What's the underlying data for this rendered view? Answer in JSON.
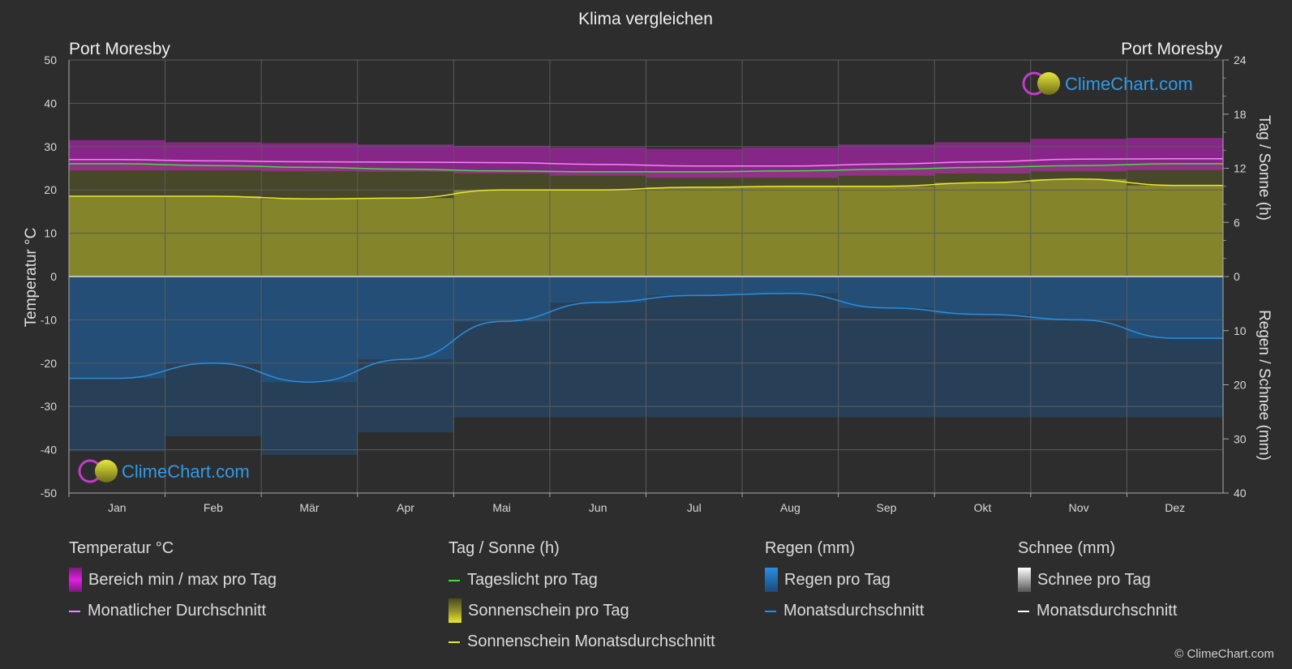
{
  "header": {
    "title": "Klima vergleichen"
  },
  "location_left": "Port Moresby",
  "location_right": "Port Moresby",
  "axis": {
    "left_label": "Temperatur °C",
    "right_top_label": "Tag / Sonne (h)",
    "right_bottom_label": "Regen / Schnee (mm)"
  },
  "watermark": "ClimeChart.com",
  "copyright": "© ClimeChart.com",
  "colors": {
    "background": "#2d2d2d",
    "temp_range": "#d020d0",
    "temp_avg": "#ff80ff",
    "daylight": "#44dd44",
    "sunshine_fill": "#8f8f2a",
    "sunshine_avg": "#e8e830",
    "rain_fill": "#1e6ab0",
    "rain_avg": "#2a8ee0",
    "snow_avg": "#ffffff"
  },
  "legend": {
    "temperature": {
      "header": "Temperatur °C",
      "items": [
        {
          "label": "Bereich min / max pro Tag",
          "icon": "magenta-gradient-box"
        },
        {
          "label": "Monatlicher Durchschnitt",
          "icon": "pink-line"
        }
      ]
    },
    "sun": {
      "header": "Tag / Sonne (h)",
      "items": [
        {
          "label": "Tageslicht pro Tag",
          "icon": "green-line"
        },
        {
          "label": "Sonnenschein pro Tag",
          "icon": "yellow-gradient-box"
        },
        {
          "label": "Sonnenschein Monatsdurchschnitt",
          "icon": "yellow-line"
        }
      ]
    },
    "rain": {
      "header": "Regen (mm)",
      "items": [
        {
          "label": "Regen pro Tag",
          "icon": "blue-gradient-box"
        },
        {
          "label": "Monatsdurchschnitt",
          "icon": "blue-line"
        }
      ]
    },
    "snow": {
      "header": "Schnee (mm)",
      "items": [
        {
          "label": "Schnee pro Tag",
          "icon": "white-gradient-box"
        },
        {
          "label": "Monatsdurchschnitt",
          "icon": "white-line"
        }
      ]
    }
  },
  "chart_data": {
    "type": "area",
    "categories": [
      "Jan",
      "Feb",
      "Mär",
      "Apr",
      "Mai",
      "Jun",
      "Jul",
      "Aug",
      "Sep",
      "Okt",
      "Nov",
      "Dez"
    ],
    "y_left": {
      "label": "Temperatur °C",
      "range": [
        -50,
        50
      ],
      "ticks": [
        50,
        40,
        30,
        20,
        10,
        0,
        -10,
        -20,
        -30,
        -40,
        -50
      ]
    },
    "y_right_top": {
      "label": "Tag / Sonne (h)",
      "range": [
        0,
        24
      ],
      "ticks": [
        24,
        18,
        12,
        6,
        0
      ]
    },
    "y_right_bottom": {
      "label": "Regen / Schnee (mm)",
      "range": [
        0,
        40
      ],
      "ticks": [
        0,
        10,
        20,
        30,
        40
      ]
    },
    "grid": true,
    "series": [
      {
        "name": "Bereich min / max pro Tag",
        "axis": "temperature",
        "min": [
          24.5,
          24.5,
          24.3,
          24.2,
          23.8,
          23.3,
          22.8,
          22.8,
          23.3,
          23.8,
          24.3,
          24.6
        ],
        "max": [
          31.5,
          31.0,
          30.8,
          30.5,
          30.2,
          29.8,
          29.5,
          29.8,
          30.5,
          31.0,
          31.8,
          32.0
        ]
      },
      {
        "name": "Monatlicher Durchschnitt",
        "axis": "temperature",
        "values": [
          27.0,
          26.7,
          26.5,
          26.4,
          26.3,
          25.9,
          25.5,
          25.5,
          26.0,
          26.5,
          27.1,
          27.2
        ]
      },
      {
        "name": "Tageslicht pro Tag",
        "axis": "sun_hours",
        "values": [
          12.5,
          12.3,
          12.1,
          11.9,
          11.7,
          11.6,
          11.6,
          11.7,
          11.9,
          12.1,
          12.3,
          12.5
        ]
      },
      {
        "name": "Sonnenschein Monatsdurchschnitt",
        "axis": "sun_hours",
        "values": [
          8.9,
          8.9,
          8.6,
          8.7,
          9.6,
          9.6,
          9.9,
          10.0,
          10.0,
          10.4,
          10.8,
          10.1
        ]
      },
      {
        "name": "Monatsdurchschnitt",
        "axis": "rain_mm",
        "values": [
          18.8,
          16.0,
          19.5,
          15.3,
          8.3,
          4.8,
          3.5,
          3.1,
          5.8,
          7.0,
          8.0,
          11.4
        ]
      }
    ]
  }
}
